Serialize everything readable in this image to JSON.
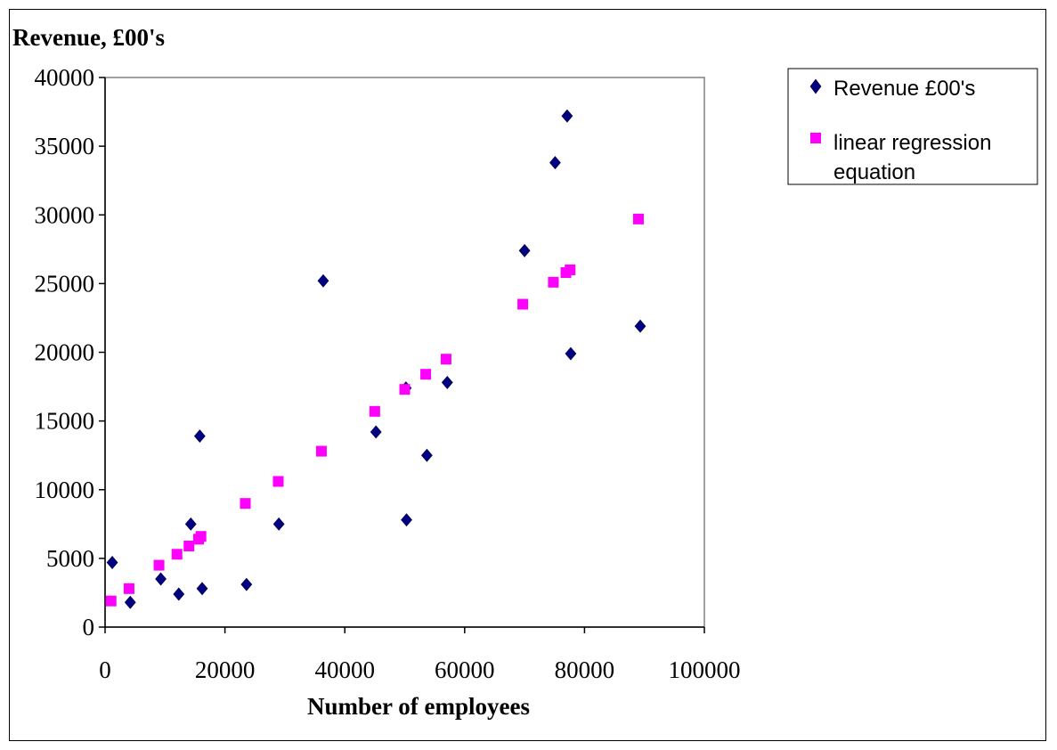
{
  "chart_data": {
    "type": "scatter",
    "ylabel": "Revenue,  £00's",
    "xlabel": "Number of employees",
    "xlim": [
      0,
      100000
    ],
    "ylim": [
      0,
      40000
    ],
    "x_ticks": [
      "0",
      "20000",
      "40000",
      "60000",
      "80000",
      "100000"
    ],
    "y_ticks": [
      "0",
      "5000",
      "10000",
      "15000",
      "20000",
      "25000",
      "30000",
      "35000",
      "40000"
    ],
    "grid": false,
    "legend_position": "right",
    "series": [
      {
        "name": "Revenue £00's",
        "marker": "diamond",
        "color": "#000080",
        "points": [
          {
            "x": 1200,
            "y": 4700
          },
          {
            "x": 4200,
            "y": 1800
          },
          {
            "x": 9300,
            "y": 3500
          },
          {
            "x": 12300,
            "y": 2400
          },
          {
            "x": 14300,
            "y": 7500
          },
          {
            "x": 15800,
            "y": 13900
          },
          {
            "x": 16200,
            "y": 2800
          },
          {
            "x": 23600,
            "y": 3100
          },
          {
            "x": 29000,
            "y": 7500
          },
          {
            "x": 36400,
            "y": 25200
          },
          {
            "x": 45200,
            "y": 14200
          },
          {
            "x": 50200,
            "y": 17400
          },
          {
            "x": 50300,
            "y": 7800
          },
          {
            "x": 53700,
            "y": 12500
          },
          {
            "x": 57100,
            "y": 17800
          },
          {
            "x": 70000,
            "y": 27400
          },
          {
            "x": 75100,
            "y": 33800
          },
          {
            "x": 77100,
            "y": 37200
          },
          {
            "x": 77700,
            "y": 19900
          },
          {
            "x": 89300,
            "y": 21900
          }
        ]
      },
      {
        "name": "linear regression equation",
        "marker": "square",
        "color": "#ff00ff",
        "points": [
          {
            "x": 1000,
            "y": 1900
          },
          {
            "x": 4000,
            "y": 2800
          },
          {
            "x": 9000,
            "y": 4500
          },
          {
            "x": 12000,
            "y": 5300
          },
          {
            "x": 14000,
            "y": 5900
          },
          {
            "x": 15600,
            "y": 6400
          },
          {
            "x": 16000,
            "y": 6600
          },
          {
            "x": 23400,
            "y": 9000
          },
          {
            "x": 28900,
            "y": 10600
          },
          {
            "x": 36100,
            "y": 12800
          },
          {
            "x": 45000,
            "y": 15700
          },
          {
            "x": 50000,
            "y": 17300
          },
          {
            "x": 53500,
            "y": 18400
          },
          {
            "x": 56900,
            "y": 19500
          },
          {
            "x": 69700,
            "y": 23500
          },
          {
            "x": 74800,
            "y": 25100
          },
          {
            "x": 76900,
            "y": 25800
          },
          {
            "x": 77600,
            "y": 26000
          },
          {
            "x": 89000,
            "y": 29700
          }
        ]
      }
    ]
  }
}
